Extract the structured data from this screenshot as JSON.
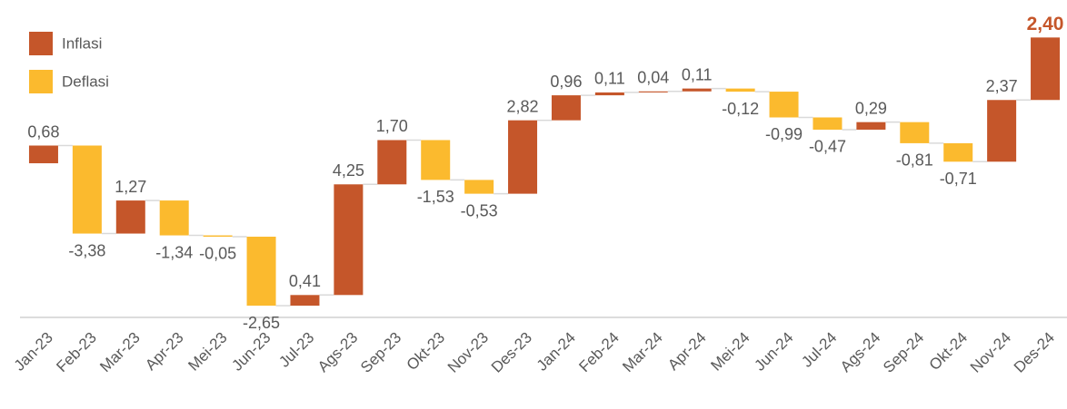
{
  "chart_data": {
    "type": "waterfall",
    "categories": [
      "Jan-23",
      "Feb-23",
      "Mar-23",
      "Apr-23",
      "Mei-23",
      "Jun-23",
      "Jul-23",
      "Ags-23",
      "Sep-23",
      "Okt-23",
      "Nov-23",
      "Des-23",
      "Jan-24",
      "Feb-24",
      "Mar-24",
      "Apr-24",
      "Mei-24",
      "Jun-24",
      "Jul-24",
      "Ags-24",
      "Sep-24",
      "Okt-24",
      "Nov-24",
      "Des-24"
    ],
    "values": [
      0.68,
      -3.38,
      1.27,
      -1.34,
      -0.05,
      -2.65,
      0.41,
      4.25,
      1.7,
      -1.53,
      -0.53,
      2.82,
      0.96,
      0.11,
      0.04,
      0.11,
      -0.12,
      -0.99,
      -0.47,
      0.29,
      -0.81,
      -0.71,
      2.37,
      2.4
    ],
    "value_labels": [
      "0,68",
      "-3,38",
      "1,27",
      "-1,34",
      "-0,05",
      "-2,65",
      "0,41",
      "4,25",
      "1,70",
      "-1,53",
      "-0,53",
      "2,82",
      "0,96",
      "0,11",
      "0,04",
      "0,11",
      "-0,12",
      "-0,99",
      "-0,47",
      "0,29",
      "-0,81",
      "-0,71",
      "2,37",
      "2,40"
    ],
    "legend": [
      {
        "name": "Inflasi",
        "color": "#c5562a"
      },
      {
        "name": "Deflasi",
        "color": "#fbba2e"
      }
    ],
    "ylim": [
      -5.92,
      6.27
    ]
  }
}
